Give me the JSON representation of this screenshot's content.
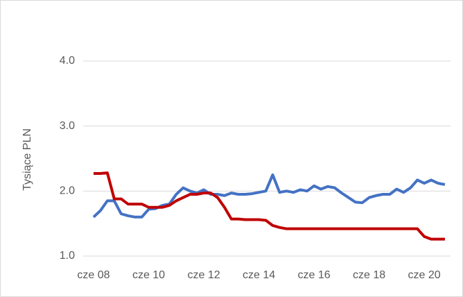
{
  "chart_data": {
    "type": "line",
    "y_label": "Tysiące PLN",
    "categories": [
      "cze 08",
      null,
      null,
      null,
      null,
      null,
      null,
      null,
      "cze 10",
      null,
      null,
      null,
      null,
      null,
      null,
      null,
      "cze 12",
      null,
      null,
      null,
      null,
      null,
      null,
      null,
      "cze 14",
      null,
      null,
      null,
      null,
      null,
      null,
      null,
      "cze 16",
      null,
      null,
      null,
      null,
      null,
      null,
      null,
      "cze 18",
      null,
      null,
      null,
      null,
      null,
      null,
      null,
      "cze 20",
      null,
      null,
      null
    ],
    "series": [
      {
        "color": "#4472c4",
        "values": [
          1.6,
          1.7,
          1.85,
          1.85,
          1.65,
          1.62,
          1.6,
          1.6,
          1.72,
          1.73,
          1.78,
          1.8,
          1.95,
          2.05,
          2.0,
          1.97,
          2.02,
          1.95,
          1.95,
          1.93,
          1.97,
          1.95,
          1.95,
          1.96,
          1.98,
          2.0,
          2.25,
          1.98,
          2.0,
          1.98,
          2.02,
          2.0,
          2.08,
          2.03,
          2.07,
          2.05,
          1.97,
          1.9,
          1.83,
          1.82,
          1.9,
          1.93,
          1.95,
          1.95,
          2.03,
          1.98,
          2.05,
          2.17,
          2.12,
          2.17,
          2.12,
          2.1
        ]
      },
      {
        "color": "#c00000",
        "values": [
          2.27,
          2.27,
          2.28,
          1.88,
          1.88,
          1.8,
          1.8,
          1.8,
          1.75,
          1.75,
          1.75,
          1.78,
          1.85,
          1.9,
          1.95,
          1.95,
          1.97,
          1.97,
          1.9,
          1.75,
          1.57,
          1.57,
          1.56,
          1.56,
          1.56,
          1.55,
          1.47,
          1.44,
          1.42,
          1.42,
          1.42,
          1.42,
          1.42,
          1.42,
          1.42,
          1.42,
          1.42,
          1.42,
          1.42,
          1.42,
          1.42,
          1.42,
          1.42,
          1.42,
          1.42,
          1.42,
          1.42,
          1.42,
          1.3,
          1.26,
          1.26,
          1.26
        ]
      }
    ],
    "ylim": [
      1,
      4
    ],
    "yticks": [
      {
        "value": 1,
        "label": "1.0"
      },
      {
        "value": 2,
        "label": "2.0"
      },
      {
        "value": 3,
        "label": "3.0"
      },
      {
        "value": 4,
        "label": "4.0"
      }
    ],
    "grid": true
  }
}
